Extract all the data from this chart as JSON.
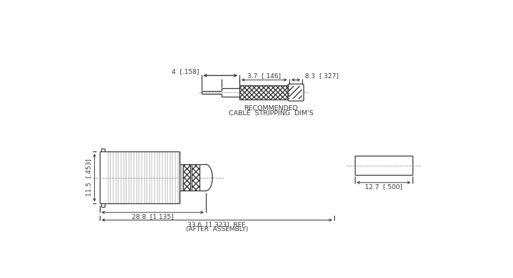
{
  "bg_color": "#ffffff",
  "line_color": "#3a3a3a",
  "dim_color": "#3a3a3a",
  "top_diagram": {
    "label_recommended": "RECOMMENDED",
    "label_cable": "CABLE  STRIPPING  DIM'S",
    "dim_4_label": "4  [.158]",
    "dim_37_label": "3.7  [.146]",
    "dim_83_label": "8.3  [.327]"
  },
  "bottom_diagram": {
    "dim_115_label": "11.5  [.453]",
    "dim_288_label": "28.8  [1.135]",
    "dim_336_label": "33.6  [1.323]  REF.",
    "dim_127_label": "12.7  [.500]",
    "label_after": "(AFTER  ASSEMBLY)"
  }
}
